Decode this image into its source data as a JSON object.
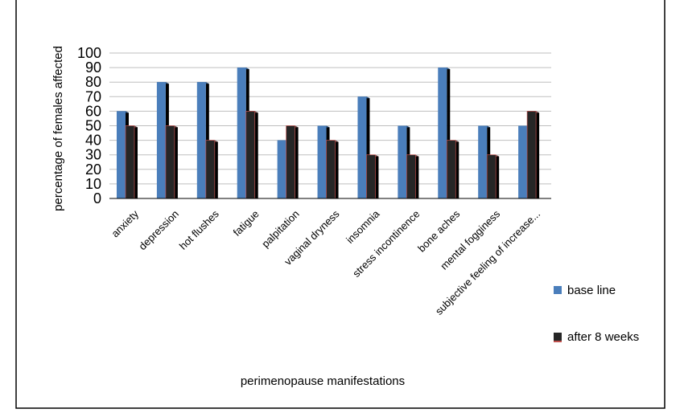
{
  "chart_data": {
    "type": "bar",
    "title": "",
    "xlabel": "perimenopause manifestations",
    "ylabel": "percentage of females affected",
    "ylim": [
      0,
      100
    ],
    "yticks": [
      0,
      10,
      20,
      30,
      40,
      50,
      60,
      70,
      80,
      90,
      100
    ],
    "grid": true,
    "legend_position": "right",
    "categories": [
      "anxiety",
      "depression",
      "hot flushes",
      "fatigue",
      "palpitation",
      "vaginal dryness",
      "insomnia",
      "stress incontinence",
      "bone aches",
      "mental fogginess",
      "subjective feeling of increase..."
    ],
    "series": [
      {
        "name": "base line",
        "color": "#4a7ebb",
        "values": [
          60,
          80,
          80,
          90,
          40,
          50,
          70,
          50,
          90,
          50,
          50
        ]
      },
      {
        "name": "after 8 weeks",
        "color": "#262626",
        "values": [
          50,
          50,
          40,
          60,
          50,
          40,
          30,
          30,
          40,
          30,
          60
        ]
      }
    ]
  }
}
